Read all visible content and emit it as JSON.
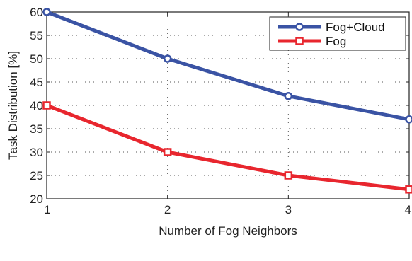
{
  "chart_data": {
    "type": "line",
    "title": "",
    "xlabel": "Number of Fog Neighbors",
    "ylabel": "Task Distribution [%]",
    "x": [
      1,
      2,
      3,
      4
    ],
    "xlim": [
      1,
      4
    ],
    "ylim": [
      20,
      60
    ],
    "xticks": [
      "1",
      "2",
      "3",
      "4"
    ],
    "yticks": [
      "20",
      "25",
      "30",
      "35",
      "40",
      "45",
      "50",
      "55",
      "60"
    ],
    "grid": true,
    "legend_position": "top-right",
    "series": [
      {
        "name": "Fog+Cloud",
        "values": [
          60,
          50,
          42,
          37
        ],
        "color": "#3a53a4",
        "marker": "circle"
      },
      {
        "name": "Fog",
        "values": [
          40,
          30,
          25,
          22
        ],
        "color": "#e8262e",
        "marker": "square"
      }
    ]
  }
}
